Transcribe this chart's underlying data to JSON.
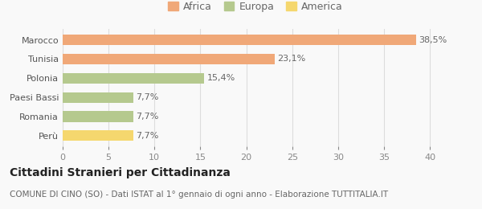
{
  "categories": [
    "Perù",
    "Romania",
    "Paesi Bassi",
    "Polonia",
    "Tunisia",
    "Marocco"
  ],
  "values": [
    7.7,
    7.7,
    7.7,
    15.4,
    23.1,
    38.5
  ],
  "labels": [
    "7,7%",
    "7,7%",
    "7,7%",
    "15,4%",
    "23,1%",
    "38,5%"
  ],
  "colors": [
    "#f5d76e",
    "#b5c98e",
    "#b5c98e",
    "#b5c98e",
    "#f0a878",
    "#f0a878"
  ],
  "legend": [
    {
      "label": "Africa",
      "color": "#f0a878"
    },
    {
      "label": "Europa",
      "color": "#b5c98e"
    },
    {
      "label": "America",
      "color": "#f5d76e"
    }
  ],
  "xlim": [
    0,
    42
  ],
  "xticks": [
    0,
    5,
    10,
    15,
    20,
    25,
    30,
    35,
    40
  ],
  "title": "Cittadini Stranieri per Cittadinanza",
  "subtitle": "COMUNE DI CINO (SO) - Dati ISTAT al 1° gennaio di ogni anno - Elaborazione TUTTITALIA.IT",
  "title_fontsize": 10,
  "subtitle_fontsize": 7.5,
  "background_color": "#f9f9f9",
  "bar_height": 0.55,
  "label_fontsize": 8,
  "tick_fontsize": 8,
  "legend_fontsize": 9
}
